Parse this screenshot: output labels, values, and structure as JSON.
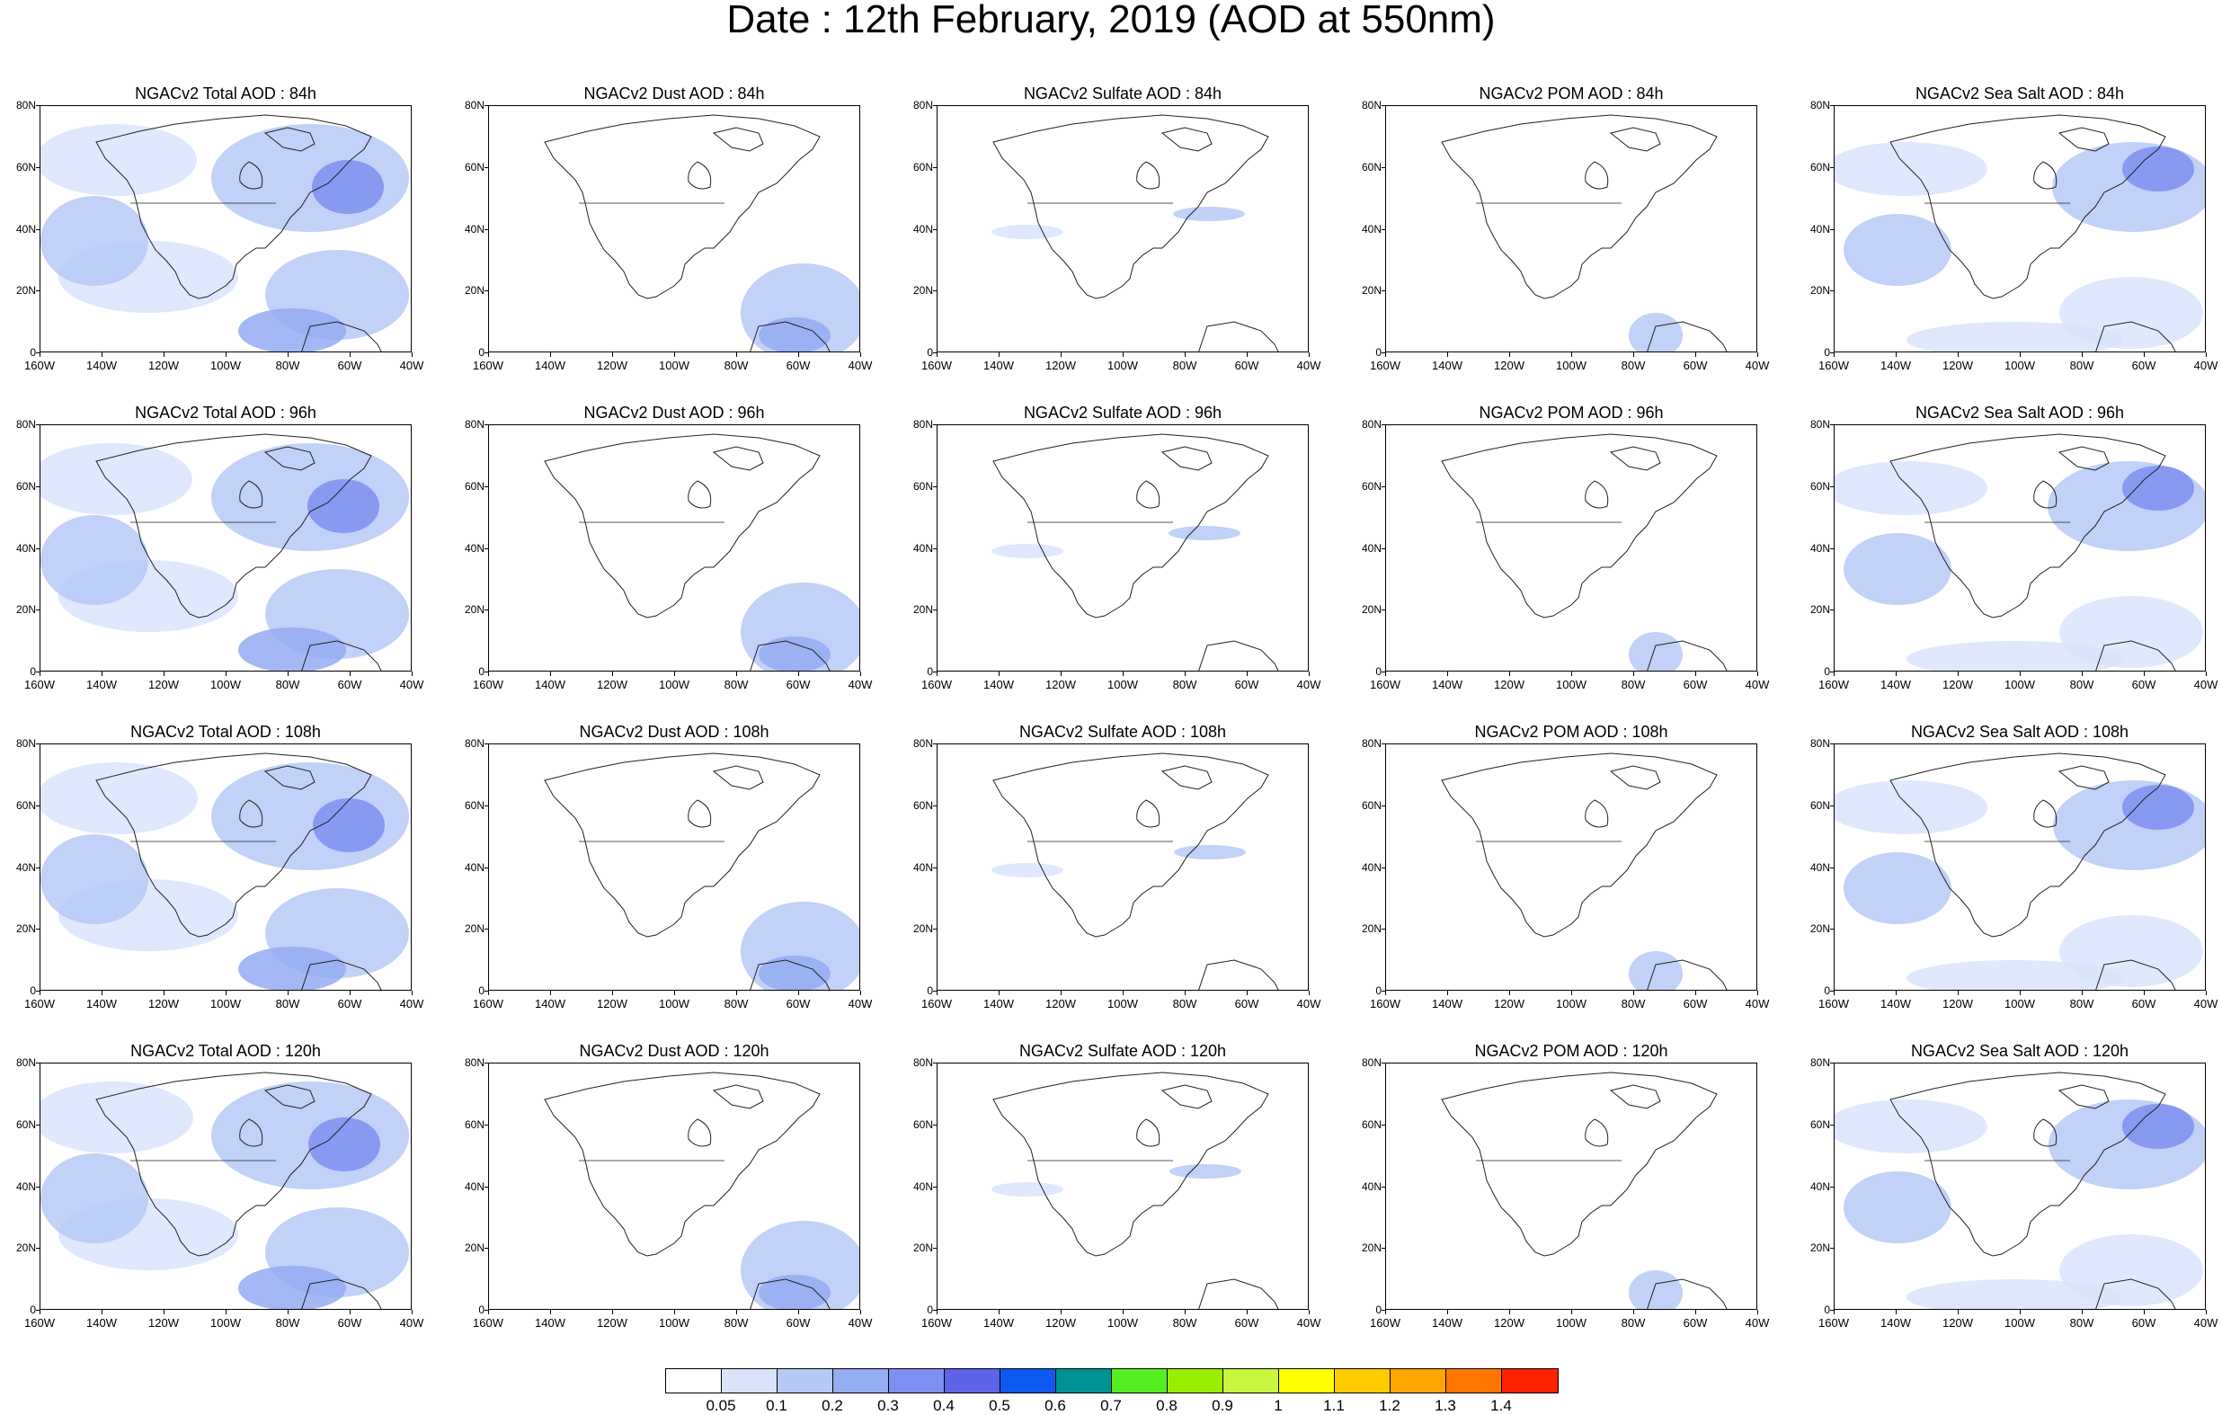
{
  "title": "Date : 12th February, 2019 (AOD at 550nm)",
  "rows": [
    {
      "hour": "84h",
      "titles": [
        "NGACv2 Total AOD : 84h",
        "NGACv2 Dust AOD : 84h",
        "NGACv2 Sulfate AOD : 84h",
        "NGACv2 POM AOD : 84h",
        "NGACv2 Sea Salt AOD : 84h"
      ]
    },
    {
      "hour": "96h",
      "titles": [
        "NGACv2 Total AOD : 96h",
        "NGACv2 Dust AOD : 96h",
        "NGACv2 Sulfate AOD : 96h",
        "NGACv2 POM AOD : 96h",
        "NGACv2 Sea Salt AOD : 96h"
      ]
    },
    {
      "hour": "108h",
      "titles": [
        "NGACv2 Total AOD : 108h",
        "NGACv2 Dust AOD : 108h",
        "NGACv2 Sulfate AOD : 108h",
        "NGACv2 POM AOD : 108h",
        "NGACv2 Sea Salt AOD : 108h"
      ]
    },
    {
      "hour": "120h",
      "titles": [
        "NGACv2 Total AOD : 120h",
        "NGACv2 Dust AOD : 120h",
        "NGACv2 Sulfate AOD : 120h",
        "NGACv2 POM AOD : 120h",
        "NGACv2 Sea Salt  AOD : 120h"
      ]
    }
  ],
  "columns": [
    "Total",
    "Dust",
    "Sulfate",
    "POM",
    "Sea Salt"
  ],
  "lat_labels": [
    "80N",
    "60N",
    "40N",
    "20N",
    "0"
  ],
  "lon_labels": [
    "160W",
    "140W",
    "120W",
    "100W",
    "80W",
    "60W",
    "40W"
  ],
  "colorbar": {
    "colors": [
      "#ffffff",
      "#d9e4fb",
      "#b6c9f6",
      "#93acf2",
      "#7d8ff0",
      "#5e63e8",
      "#0e5af0",
      "#009393",
      "#55ee22",
      "#99ee00",
      "#c8f53e",
      "#ffff00",
      "#ffcc00",
      "#ffa500",
      "#ff7700",
      "#ff2200"
    ],
    "labels": [
      "0.05",
      "0.1",
      "0.2",
      "0.3",
      "0.4",
      "0.5",
      "0.6",
      "0.7",
      "0.8",
      "0.9",
      "1",
      "1.1",
      "1.2",
      "1.3",
      "1.4"
    ]
  }
}
